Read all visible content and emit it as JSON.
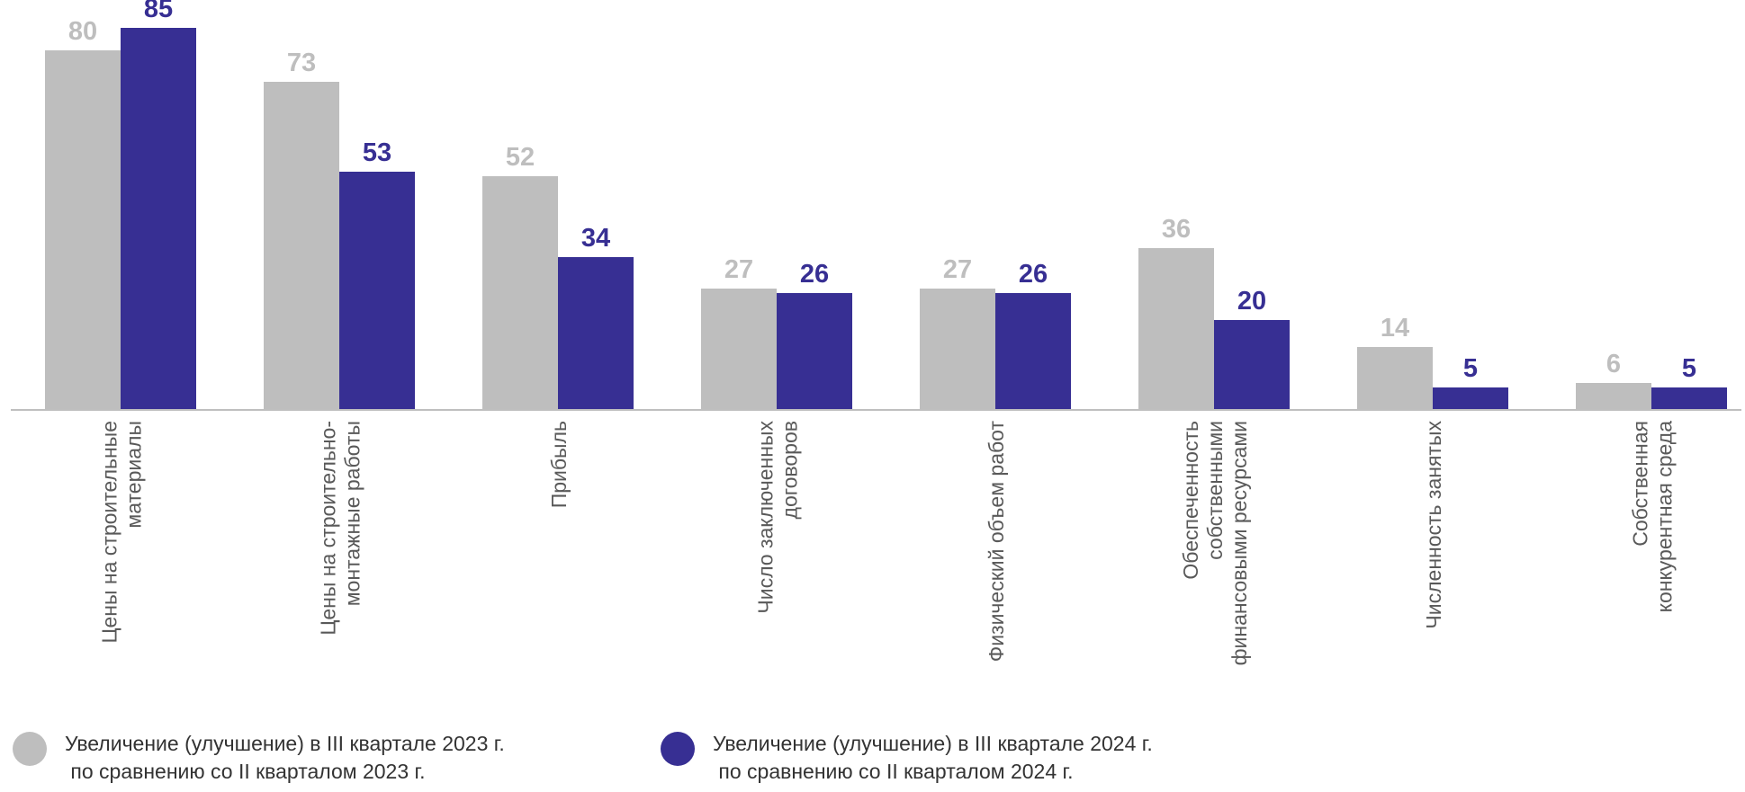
{
  "chart_data": {
    "type": "bar",
    "categories": [
      [
        "Цены на строительные",
        "материалы"
      ],
      [
        "Цены на строительно-",
        "монтажные работы"
      ],
      [
        "Прибыль"
      ],
      [
        "Число заключенных",
        "договоров"
      ],
      [
        "Физический объем работ"
      ],
      [
        "Обеспеченность",
        "собственными",
        "финансовыми ресурсами"
      ],
      [
        "Численность занятых"
      ],
      [
        "Собственная",
        "конкурентная  среда"
      ]
    ],
    "series": [
      {
        "name": "Увеличение (улучшение) в III квартале 2023 г. по сравнению со II кварталом 2023 г.",
        "legend_lines": [
          "Увеличение (улучшение) в III квартале 2023 г.",
          " по сравнению со II кварталом 2023 г."
        ],
        "color": "#bebebe",
        "values": [
          80,
          73,
          52,
          27,
          27,
          36,
          14,
          6
        ]
      },
      {
        "name": "Увеличение (улучшение) в III квартале 2024 г. по сравнению со II кварталом 2024 г.",
        "legend_lines": [
          "Увеличение (улучшение) в III квартале 2024 г.",
          " по сравнению со II кварталом 2024 г."
        ],
        "color": "#372f93",
        "values": [
          85,
          53,
          34,
          26,
          26,
          20,
          5,
          5
        ]
      }
    ],
    "ylim": [
      0,
      100
    ],
    "grid": false,
    "legend_position": "bottom",
    "data_labels": true
  }
}
